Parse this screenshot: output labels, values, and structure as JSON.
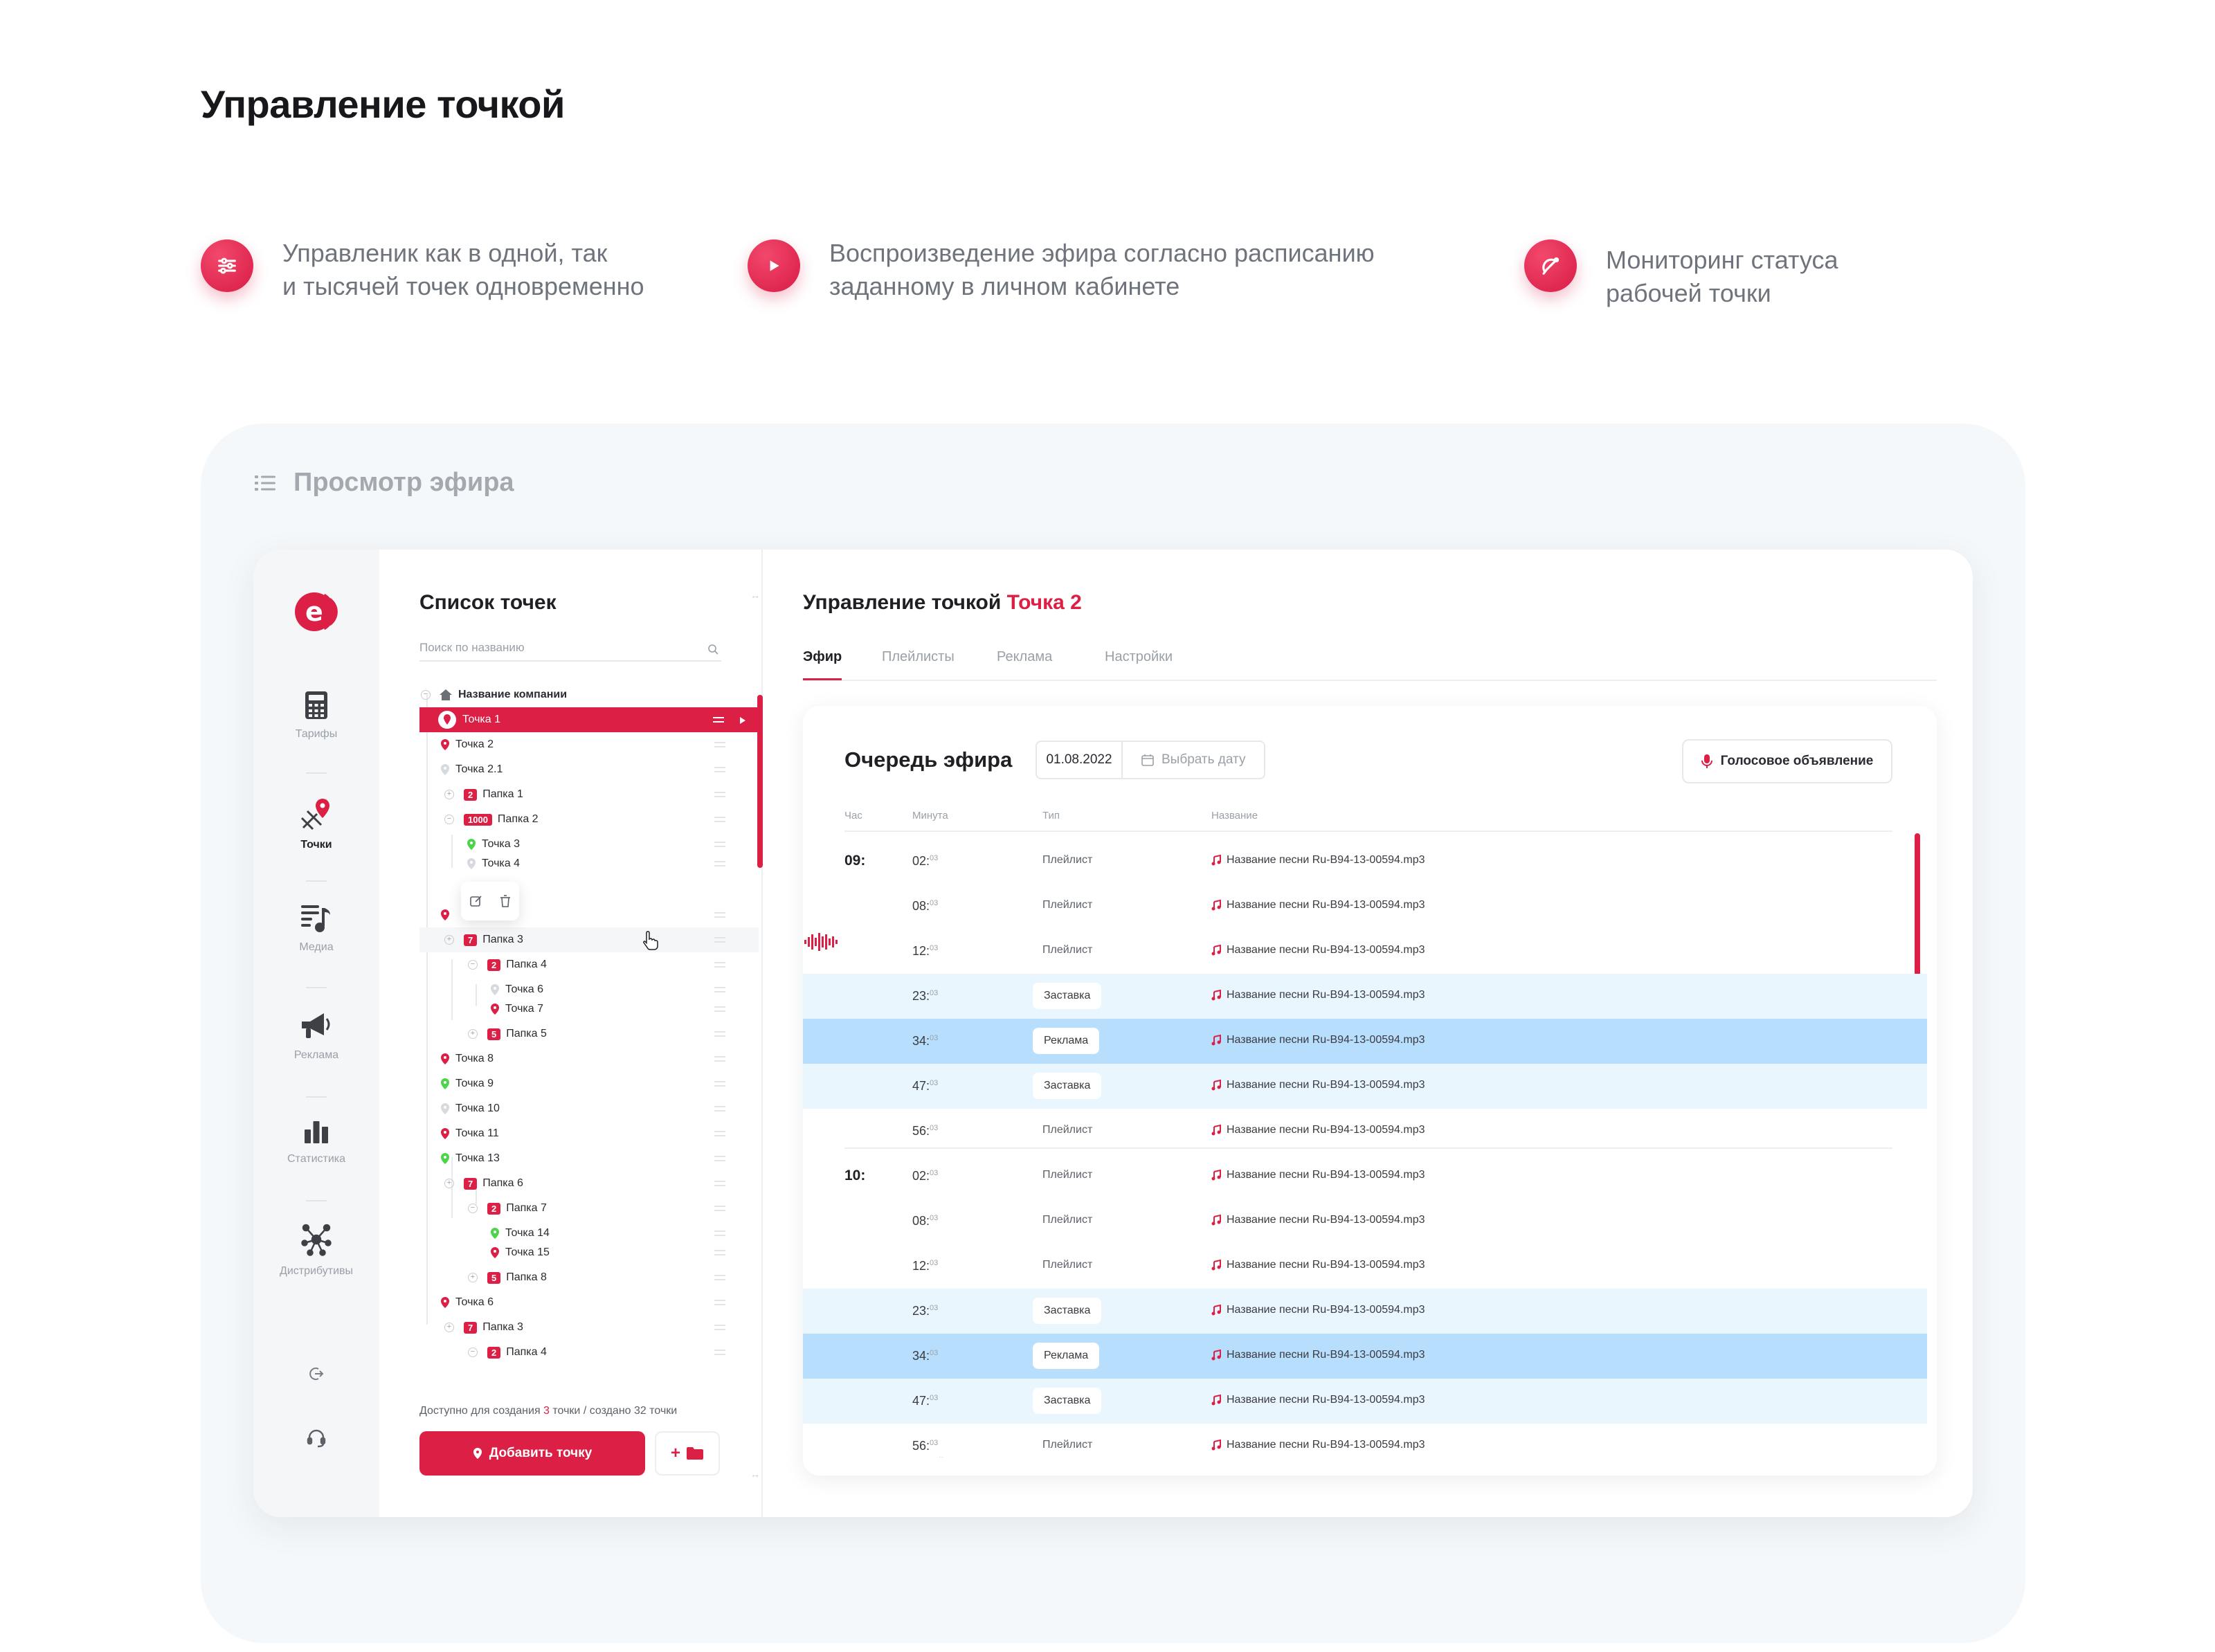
{
  "page": {
    "title": "Управление точкой"
  },
  "features": [
    {
      "icon": "sliders-icon",
      "line1": "Управленик как в одной, так",
      "line2": "и тысячей точек одновременно"
    },
    {
      "icon": "play-icon",
      "line1": "Воспроизведение эфира согласно расписанию",
      "line2": "заданному в личном кабинете"
    },
    {
      "icon": "satellite-icon",
      "line1": "Мониторинг статуса",
      "line2": "рабочей точки"
    }
  ],
  "panel": {
    "title": "Просмотр эфира",
    "icon": "list-icon"
  },
  "colors": {
    "accent": "#db1f45",
    "online": "#4cd44b",
    "highlight_light": "#e9f6fe",
    "highlight_strong": "#b8defd"
  },
  "sidebar": {
    "logo_letter": "e",
    "items": [
      {
        "label": "Тарифы",
        "icon": "calculator-icon"
      },
      {
        "label": "Точки",
        "icon": "map-pin-icon"
      },
      {
        "label": "Медиа",
        "icon": "media-icon"
      },
      {
        "label": "Реклама",
        "icon": "megaphone-icon"
      },
      {
        "label": "Статистика",
        "icon": "bar-chart-icon"
      },
      {
        "label": "Дистрибутивы",
        "icon": "network-icon"
      }
    ],
    "bottom": [
      {
        "icon": "logout-icon"
      },
      {
        "icon": "headset-icon"
      }
    ]
  },
  "points_list": {
    "title": "Список точек",
    "search_placeholder": "Поиск по названию",
    "tree": [
      {
        "label": "Название компании"
      },
      {
        "label": "Точка 1"
      },
      {
        "label": "Точка 2"
      },
      {
        "label": "Точка 2.1"
      },
      {
        "label": "Папка 1",
        "badge": "2"
      },
      {
        "label": "Папка 2",
        "badge": "1000"
      },
      {
        "label": "Точка 3"
      },
      {
        "label": "Точка 4"
      },
      {
        "label": "Папка 3",
        "badge": "7"
      },
      {
        "label": "Папка 4",
        "badge": "2"
      },
      {
        "label": "Точка 6"
      },
      {
        "label": "Точка 7"
      },
      {
        "label": "Папка 5",
        "badge": "5"
      },
      {
        "label": "Точка 8"
      },
      {
        "label": "Точка 9"
      },
      {
        "label": "Точка 10"
      },
      {
        "label": "Точка 11"
      },
      {
        "label": "Точка 13"
      },
      {
        "label": "Папка 6",
        "badge": "7"
      },
      {
        "label": "Папка 7",
        "badge": "2"
      },
      {
        "label": "Точка 14"
      },
      {
        "label": "Точка 15"
      },
      {
        "label": "Папка 8",
        "badge": "5"
      },
      {
        "label": "Точка 6"
      },
      {
        "label": "Папка 3",
        "badge": "7"
      },
      {
        "label": "Папка 4",
        "badge": "2"
      }
    ],
    "quota_prefix": "Доступно для создания ",
    "quota_count": "3",
    "quota_suffix": " точки / создано 32 точки",
    "add_button": "Добавить точку",
    "add_folder": "+"
  },
  "main": {
    "title": "Управление точкой",
    "point_name": "Точка 2",
    "tabs": [
      "Эфир",
      "Плейлисты",
      "Реклама",
      "Настройки"
    ],
    "queue": {
      "title": "Очередь эфира",
      "date": "01.08.2022",
      "pick_date": "Выбрать дату",
      "voice_button": "Голосовое объявление",
      "columns": [
        "Час",
        "Минута",
        "Тип",
        "Название"
      ],
      "rows": [
        {
          "hour": "09:",
          "minute": "02:",
          "sec": "03",
          "type": "Плейлист",
          "name": "Название песни Ru-B94-13-00594.mp3"
        },
        {
          "hour": "",
          "minute": "08:",
          "sec": "03",
          "type": "Плейлист",
          "name": "Название песни Ru-B94-13-00594.mp3"
        },
        {
          "hour": "",
          "minute": "12:",
          "sec": "03",
          "type": "Плейлист",
          "name": "Название песни Ru-B94-13-00594.mp3"
        },
        {
          "hour": "",
          "minute": "23:",
          "sec": "03",
          "type": "Заставка",
          "name": "Название песни Ru-B94-13-00594.mp3"
        },
        {
          "hour": "",
          "minute": "34:",
          "sec": "03",
          "type": "Реклама",
          "name": "Название песни Ru-B94-13-00594.mp3"
        },
        {
          "hour": "",
          "minute": "47:",
          "sec": "03",
          "type": "Заставка",
          "name": "Название песни Ru-B94-13-00594.mp3"
        },
        {
          "hour": "",
          "minute": "56:",
          "sec": "03",
          "type": "Плейлист",
          "name": "Название песни Ru-B94-13-00594.mp3"
        },
        {
          "hour": "10:",
          "minute": "02:",
          "sec": "03",
          "type": "Плейлист",
          "name": "Название песни Ru-B94-13-00594.mp3"
        },
        {
          "hour": "",
          "minute": "08:",
          "sec": "03",
          "type": "Плейлист",
          "name": "Название песни Ru-B94-13-00594.mp3"
        },
        {
          "hour": "",
          "minute": "12:",
          "sec": "03",
          "type": "Плейлист",
          "name": "Название песни Ru-B94-13-00594.mp3"
        },
        {
          "hour": "",
          "minute": "23:",
          "sec": "03",
          "type": "Заставка",
          "name": "Название песни Ru-B94-13-00594.mp3"
        },
        {
          "hour": "",
          "minute": "34:",
          "sec": "03",
          "type": "Реклама",
          "name": "Название песни Ru-B94-13-00594.mp3"
        },
        {
          "hour": "",
          "minute": "47:",
          "sec": "03",
          "type": "Заставка",
          "name": "Название песни Ru-B94-13-00594.mp3"
        },
        {
          "hour": "",
          "minute": "56:",
          "sec": "03",
          "type": "Плейлист",
          "name": "Название песни Ru-B94-13-00594.mp3"
        }
      ]
    }
  }
}
